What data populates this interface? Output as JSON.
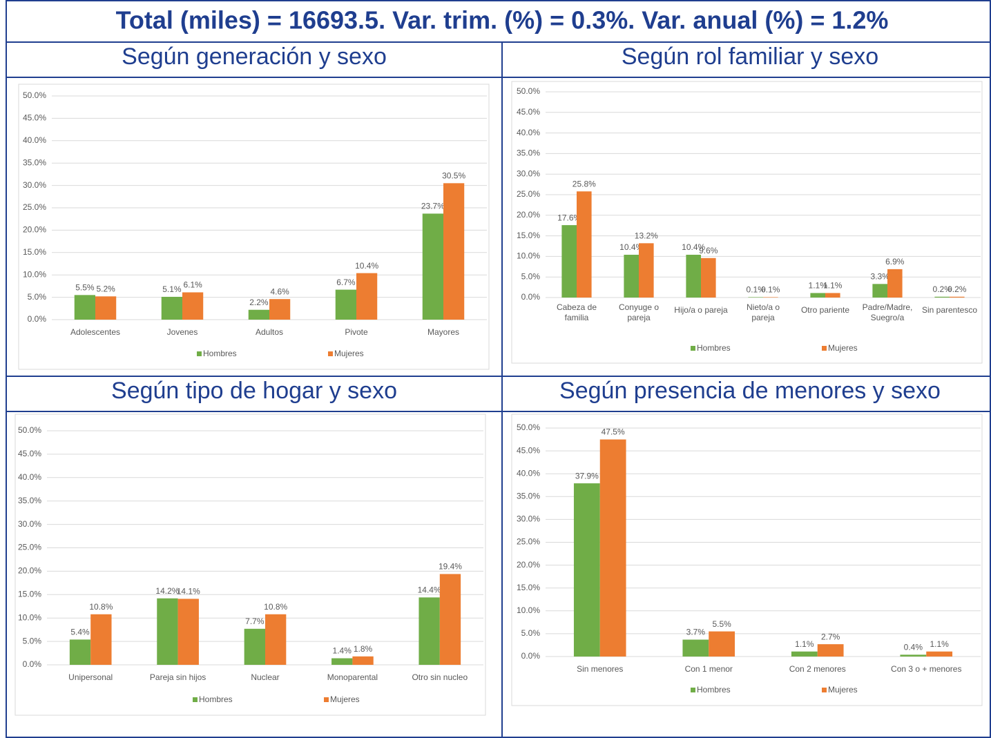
{
  "header": {
    "title": "Total (miles) = 16693.5. Var. trim. (%) = 0.3%. Var. anual (%) = 1.2%"
  },
  "chart_data": [
    {
      "type": "bar",
      "title": "Según generación y sexo",
      "categories": [
        "Adolescentes",
        "Jovenes",
        "Adultos",
        "Pivote",
        "Mayores"
      ],
      "series": [
        {
          "name": "Hombres",
          "color": "#70ad47",
          "values": [
            5.5,
            5.1,
            2.2,
            6.7,
            23.7
          ],
          "value_labels": [
            "5.5%",
            "5.1%",
            "2.2%",
            "6.7%",
            "23.7%"
          ]
        },
        {
          "name": "Mujeres",
          "color": "#ed7d31",
          "values": [
            5.2,
            6.1,
            4.6,
            10.4,
            30.5
          ],
          "value_labels": [
            "5.2%",
            "6.1%",
            "4.6%",
            "10.4%",
            "30.5%"
          ]
        }
      ],
      "ylim": [
        0,
        50
      ],
      "yticks": [
        {
          "value": 0,
          "label": "0.0%"
        },
        {
          "value": 5,
          "label": "5.0%"
        },
        {
          "value": 10,
          "label": "10.0%"
        },
        {
          "value": 15,
          "label": "15.0%"
        },
        {
          "value": 20,
          "label": "20.0%"
        },
        {
          "value": 25,
          "label": "25.0%"
        },
        {
          "value": 30,
          "label": "30.0%"
        },
        {
          "value": 35,
          "label": "35.0%"
        },
        {
          "value": 40,
          "label": "40.0%"
        },
        {
          "value": 45,
          "label": "45.0%"
        },
        {
          "value": 50,
          "label": "50.0%"
        }
      ],
      "grid": true,
      "legend": "bottom"
    },
    {
      "type": "bar",
      "title": "Según rol familiar y sexo",
      "categories": [
        "Cabeza de familia",
        "Conyuge o pareja",
        "Hijo/a o pareja",
        "Nieto/a o pareja",
        "Otro pariente",
        "Padre/Madre, Suegro/a",
        "Sin parentesco"
      ],
      "series": [
        {
          "name": "Hombres",
          "color": "#70ad47",
          "values": [
            17.6,
            10.4,
            10.4,
            0.1,
            1.1,
            3.3,
            0.2
          ],
          "value_labels": [
            "17.6%",
            "10.4%",
            "10.4%",
            "0.1%",
            "1.1%",
            "3.3%",
            "0.2%"
          ]
        },
        {
          "name": "Mujeres",
          "color": "#ed7d31",
          "values": [
            25.8,
            13.2,
            9.6,
            0.1,
            1.1,
            6.9,
            0.2
          ],
          "value_labels": [
            "25.8%",
            "13.2%",
            "9.6%",
            "0.1%",
            "1.1%",
            "6.9%",
            "0.2%"
          ]
        }
      ],
      "ylim": [
        0,
        50
      ],
      "yticks": [
        {
          "value": 0,
          "label": "0.0%"
        },
        {
          "value": 5,
          "label": "5.0%"
        },
        {
          "value": 10,
          "label": "10.0%"
        },
        {
          "value": 15,
          "label": "15.0%"
        },
        {
          "value": 20,
          "label": "20.0%"
        },
        {
          "value": 25,
          "label": "25.0%"
        },
        {
          "value": 30,
          "label": "30.0%"
        },
        {
          "value": 35,
          "label": "35.0%"
        },
        {
          "value": 40,
          "label": "40.0%"
        },
        {
          "value": 45,
          "label": "45.0%"
        },
        {
          "value": 50,
          "label": "50.0%"
        }
      ],
      "grid": true,
      "legend": "bottom"
    },
    {
      "type": "bar",
      "title": "Según tipo de hogar y sexo",
      "categories": [
        "Unipersonal",
        "Pareja sin hijos",
        "Nuclear",
        "Monoparental",
        "Otro sin nucleo"
      ],
      "series": [
        {
          "name": "Hombres",
          "color": "#70ad47",
          "values": [
            5.4,
            14.2,
            7.7,
            1.4,
            14.4
          ],
          "value_labels": [
            "5.4%",
            "14.2%",
            "7.7%",
            "1.4%",
            "14.4%"
          ]
        },
        {
          "name": "Mujeres",
          "color": "#ed7d31",
          "values": [
            10.8,
            14.1,
            10.8,
            1.8,
            19.4
          ],
          "value_labels": [
            "10.8%",
            "14.1%",
            "10.8%",
            "1.8%",
            "19.4%"
          ]
        }
      ],
      "ylim": [
        0,
        50
      ],
      "yticks": [
        {
          "value": 0,
          "label": "0.0%"
        },
        {
          "value": 5,
          "label": "5.0%"
        },
        {
          "value": 10,
          "label": "10.0%"
        },
        {
          "value": 15,
          "label": "15.0%"
        },
        {
          "value": 20,
          "label": "20.0%"
        },
        {
          "value": 25,
          "label": "25.0%"
        },
        {
          "value": 30,
          "label": "30.0%"
        },
        {
          "value": 35,
          "label": "35.0%"
        },
        {
          "value": 40,
          "label": "40.0%"
        },
        {
          "value": 45,
          "label": "45.0%"
        },
        {
          "value": 50,
          "label": "50.0%"
        }
      ],
      "grid": true,
      "legend": "bottom"
    },
    {
      "type": "bar",
      "title": "Según presencia de menores y sexo",
      "categories": [
        "Sin menores",
        "Con 1 menor",
        "Con 2 menores",
        "Con 3 o + menores"
      ],
      "series": [
        {
          "name": "Hombres",
          "color": "#70ad47",
          "values": [
            37.9,
            3.7,
            1.1,
            0.4
          ],
          "value_labels": [
            "37.9%",
            "3.7%",
            "1.1%",
            "0.4%"
          ]
        },
        {
          "name": "Mujeres",
          "color": "#ed7d31",
          "values": [
            47.5,
            5.5,
            2.7,
            1.1
          ],
          "value_labels": [
            "47.5%",
            "5.5%",
            "2.7%",
            "1.1%"
          ]
        }
      ],
      "ylim": [
        0,
        50
      ],
      "yticks": [
        {
          "value": 0,
          "label": "0.0%"
        },
        {
          "value": 5,
          "label": "5.0%"
        },
        {
          "value": 10,
          "label": "10.0%"
        },
        {
          "value": 15,
          "label": "15.0%"
        },
        {
          "value": 20,
          "label": "20.0%"
        },
        {
          "value": 25,
          "label": "25.0%"
        },
        {
          "value": 30,
          "label": "30.0%"
        },
        {
          "value": 35,
          "label": "35.0%"
        },
        {
          "value": 40,
          "label": "40.0%"
        },
        {
          "value": 45,
          "label": "45.0%"
        },
        {
          "value": 50,
          "label": "50.0%"
        }
      ],
      "grid": true,
      "legend": "bottom"
    }
  ]
}
